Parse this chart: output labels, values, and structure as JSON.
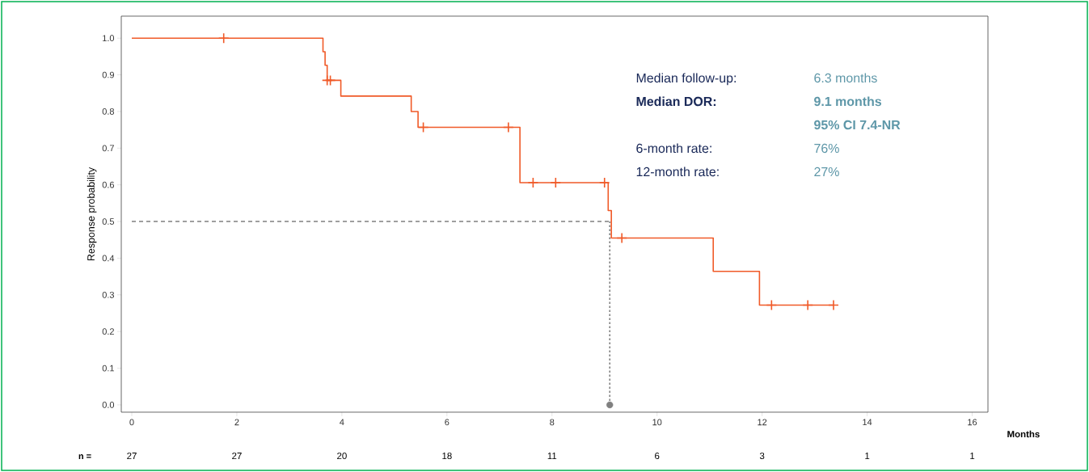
{
  "chart_data": {
    "type": "step",
    "ylabel": "Response probability",
    "xlabel": "Months",
    "xlim": [
      -0.2,
      16.3
    ],
    "ylim": [
      -0.02,
      1.06
    ],
    "xticks": [
      0,
      2,
      4,
      6,
      8,
      10,
      12,
      14,
      16
    ],
    "yticks": [
      {
        "value": 0,
        "label": "0.0"
      },
      0.1,
      0.2,
      0.3,
      0.4,
      0.5,
      0.6,
      0.7,
      0.8,
      0.9,
      {
        "value": 1,
        "label": "1.0"
      }
    ],
    "grid": false,
    "series": [
      {
        "color": "#f05a28",
        "x": [
          0,
          3.64,
          3.68,
          3.72,
          3.98,
          5.32,
          5.45,
          7.39,
          9.07,
          9.13,
          11.07,
          11.95,
          13.36
        ],
        "values": [
          1,
          0.963,
          0.926,
          0.885,
          0.842,
          0.8,
          0.757,
          0.606,
          0.53,
          0.455,
          0.364,
          0.272,
          0.272
        ]
      },
      {
        "type": "scatter",
        "marker": "cross",
        "color": "#f05a28",
        "x": [
          1.75,
          3.72,
          3.78,
          5.55,
          7.17,
          7.64,
          8.07,
          9.0,
          9.33,
          12.18,
          12.87,
          13.36
        ],
        "values": [
          1,
          0.885,
          0.885,
          0.757,
          0.757,
          0.606,
          0.606,
          0.606,
          0.455,
          0.272,
          0.272,
          0.272
        ]
      },
      {
        "type": "scatter",
        "marker": "circle",
        "color": "#808080",
        "x": [
          9.1
        ],
        "values": [
          0
        ]
      }
    ],
    "ref_lines": [
      {
        "axis": "y",
        "value": 0.5,
        "line_style": "dashed",
        "color": "#808080"
      },
      {
        "axis": "x",
        "value": 9.1,
        "line_style": "dotted",
        "color": "#808080"
      }
    ],
    "annotations": [
      "Median follow-up:",
      "6.3 months",
      "**Median DOR:**",
      "**9.1 months**",
      "**95% CI 7.4-NR**",
      "6-month rate:",
      "76%",
      "12-month rate:",
      "27%",
      "n  =",
      "27",
      "27",
      "20",
      "18",
      "11",
      "6",
      "3",
      "1",
      "1"
    ]
  }
}
